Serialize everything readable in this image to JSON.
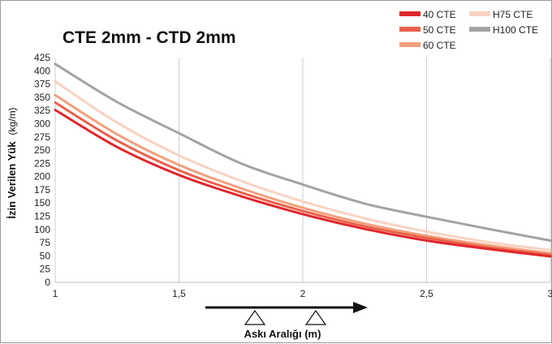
{
  "chart_data": {
    "type": "line",
    "title": "CTE 2mm - CTD 2mm",
    "xlabel": "Askı Aralığı (m)",
    "ylabel": "İzin Verilen Yük",
    "ylabel_unit": "(kg/m)",
    "xlim": [
      1,
      3
    ],
    "ylim": [
      0,
      425
    ],
    "x_ticks": [
      "1",
      "1,5",
      "2",
      "2,5",
      "3"
    ],
    "y_ticks": [
      "0",
      "25",
      "50",
      "75",
      "100",
      "125",
      "150",
      "175",
      "200",
      "225",
      "250",
      "275",
      "300",
      "325",
      "350",
      "375",
      "400",
      "425"
    ],
    "x": [
      1,
      1.25,
      1.5,
      1.75,
      2,
      2.25,
      2.5,
      2.75,
      3
    ],
    "series": [
      {
        "name": "40 CTE",
        "color": "#e0262c",
        "values": [
          326,
          256,
          203,
          163,
          129,
          101,
          79,
          63,
          49
        ]
      },
      {
        "name": "50 CTE",
        "color": "#ea6148",
        "values": [
          340,
          268,
          212,
          170,
          135,
          106,
          84,
          66,
          52
        ]
      },
      {
        "name": "60 CTE",
        "color": "#f2a07c",
        "values": [
          354,
          280,
          222,
          178,
          141,
          111,
          88,
          70,
          55
        ]
      },
      {
        "name": "H75 CTE",
        "color": "#f9d2c0",
        "values": [
          380,
          302,
          240,
          192,
          153,
          121,
          96,
          76,
          61
        ]
      },
      {
        "name": "H100 CTE",
        "color": "#a3a3a3",
        "values": [
          413,
          341,
          282,
          225,
          185,
          149,
          124,
          101,
          79
        ]
      }
    ],
    "legend_position": "top-right",
    "grid": true
  }
}
